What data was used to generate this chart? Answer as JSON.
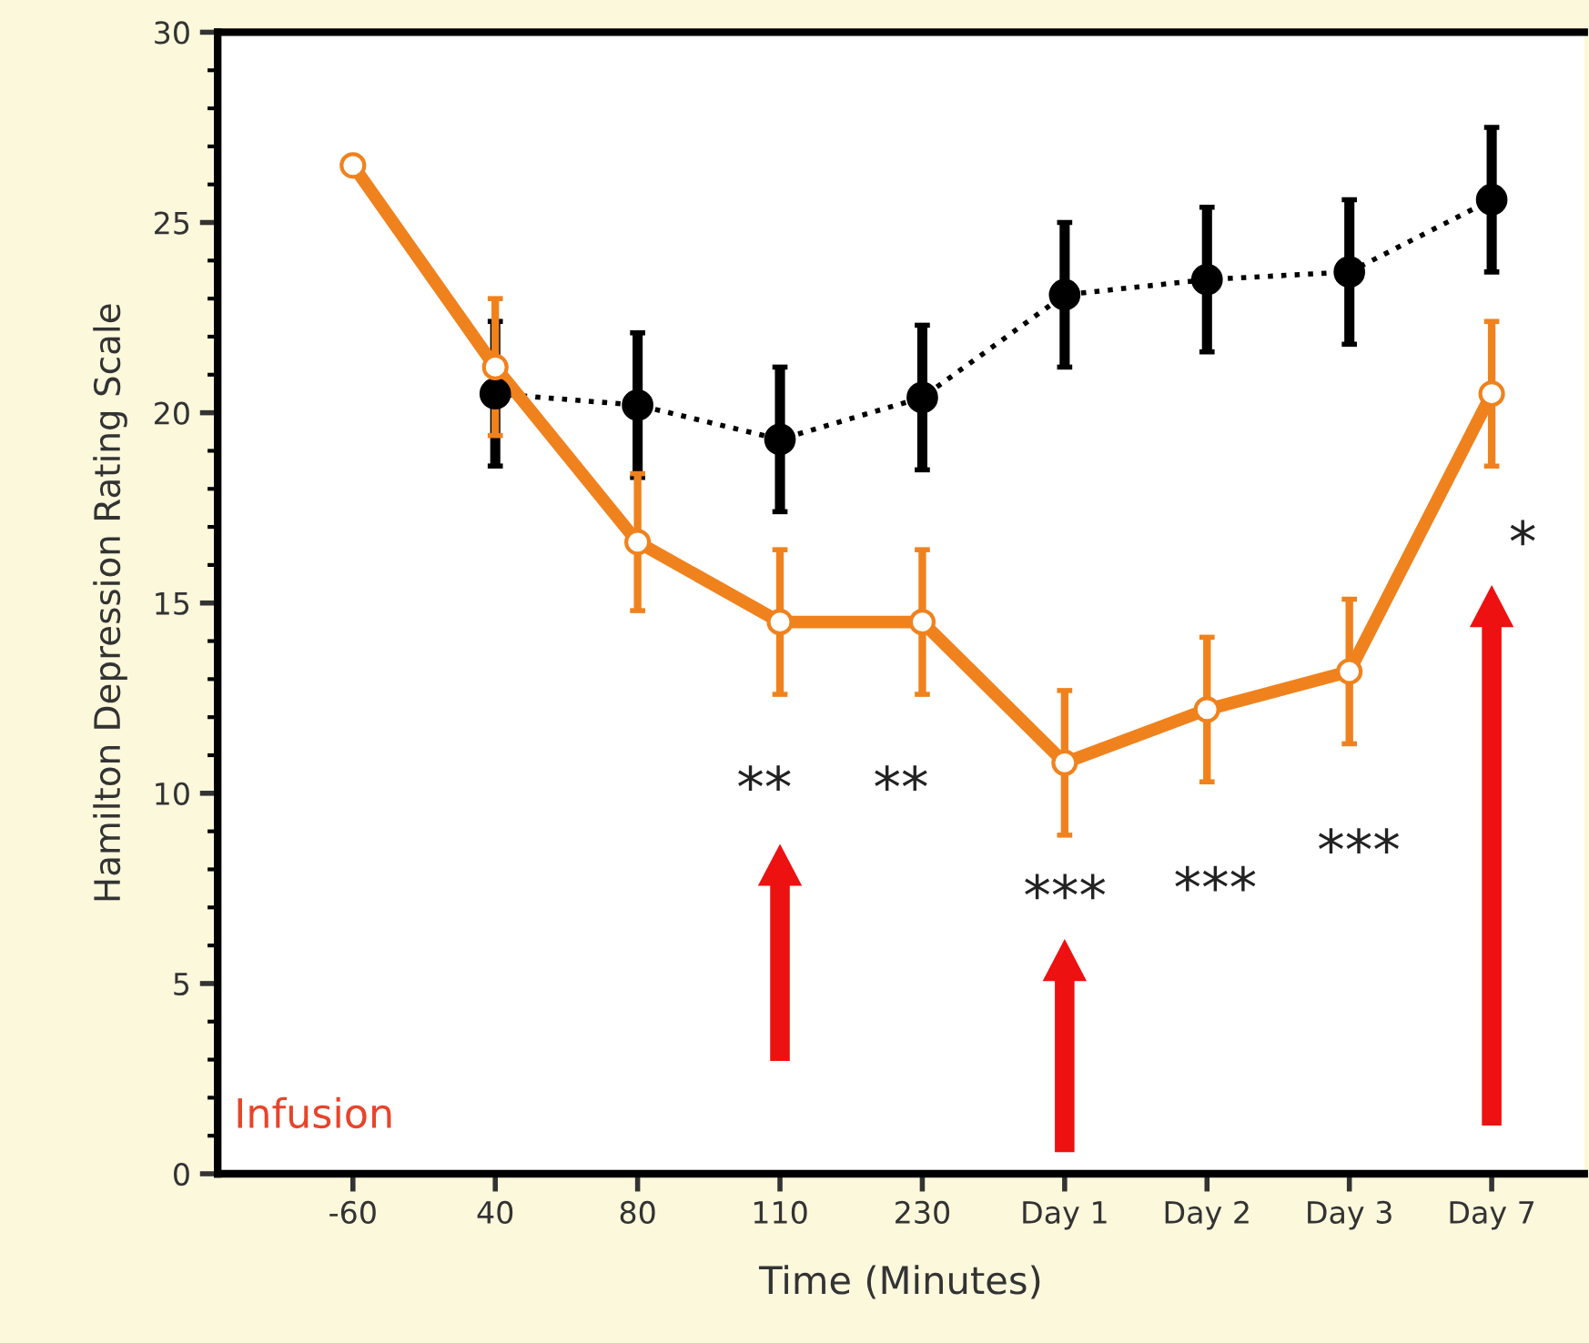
{
  "chart_data": {
    "type": "line",
    "xlabel": "Time (Minutes)",
    "ylabel": "Hamilton Depression Rating Scale",
    "categories": [
      "-60",
      "40",
      "80",
      "110",
      "230",
      "Day 1",
      "Day 2",
      "Day 3",
      "Day 7"
    ],
    "ylim": [
      0,
      30
    ],
    "yticks": [
      0,
      5,
      10,
      15,
      20,
      25,
      30
    ],
    "marker": "circle",
    "grid": false,
    "legend": false,
    "series": [
      {
        "color": "#000000",
        "line_style": "dotted",
        "values": [
          null,
          20.5,
          20.2,
          19.3,
          20.4,
          23.1,
          23.5,
          23.7,
          25.6
        ],
        "errors": [
          null,
          1.9,
          1.9,
          1.9,
          1.9,
          1.9,
          1.9,
          1.9,
          1.9
        ]
      },
      {
        "color": "#f0821e",
        "line_style": "solid",
        "values": [
          26.5,
          21.2,
          16.6,
          14.5,
          14.5,
          10.8,
          12.2,
          13.2,
          20.5
        ],
        "errors": [
          null,
          1.8,
          1.8,
          1.9,
          1.9,
          1.9,
          1.9,
          1.9,
          1.9
        ]
      }
    ],
    "annotations": [
      "**",
      "**",
      "***",
      "***",
      "***",
      "*",
      "Infusion"
    ]
  }
}
